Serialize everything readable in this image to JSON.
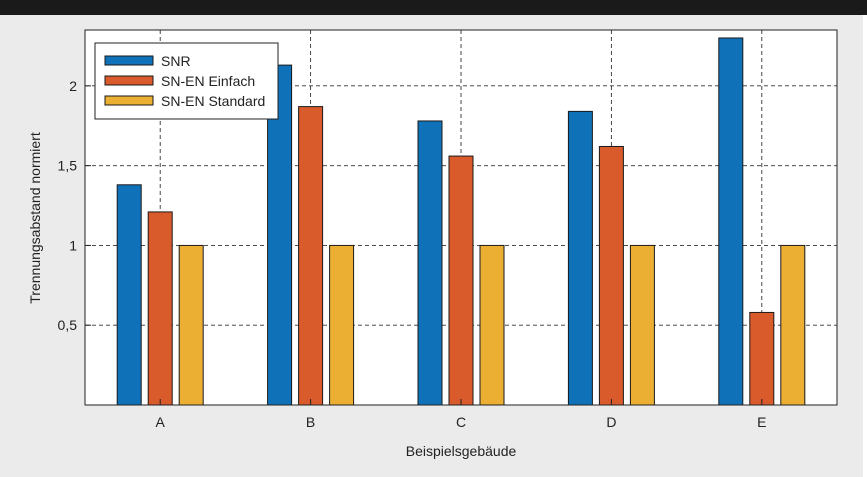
{
  "chart_data": {
    "type": "bar",
    "title": "",
    "xlabel": "Beispielsgebäude",
    "ylabel": "Trennungsabstand normiert",
    "categories": [
      "A",
      "B",
      "C",
      "D",
      "E"
    ],
    "ylim": [
      0,
      2.35
    ],
    "yticks": [
      0.5,
      1,
      1.5,
      2
    ],
    "ytick_labels": [
      "0,5",
      "1",
      "1,5",
      "2"
    ],
    "grid": true,
    "legend_position": "top-left",
    "series": [
      {
        "name": "SNR",
        "color": "#0f72b9",
        "values": [
          1.38,
          2.13,
          1.78,
          1.84,
          2.3
        ]
      },
      {
        "name": "SN-EN Einfach",
        "color": "#d95a2b",
        "values": [
          1.21,
          1.87,
          1.56,
          1.62,
          0.58
        ]
      },
      {
        "name": "SN-EN Standard",
        "color": "#ebb033",
        "values": [
          1.0,
          1.0,
          1.0,
          1.0,
          1.0
        ]
      }
    ]
  }
}
